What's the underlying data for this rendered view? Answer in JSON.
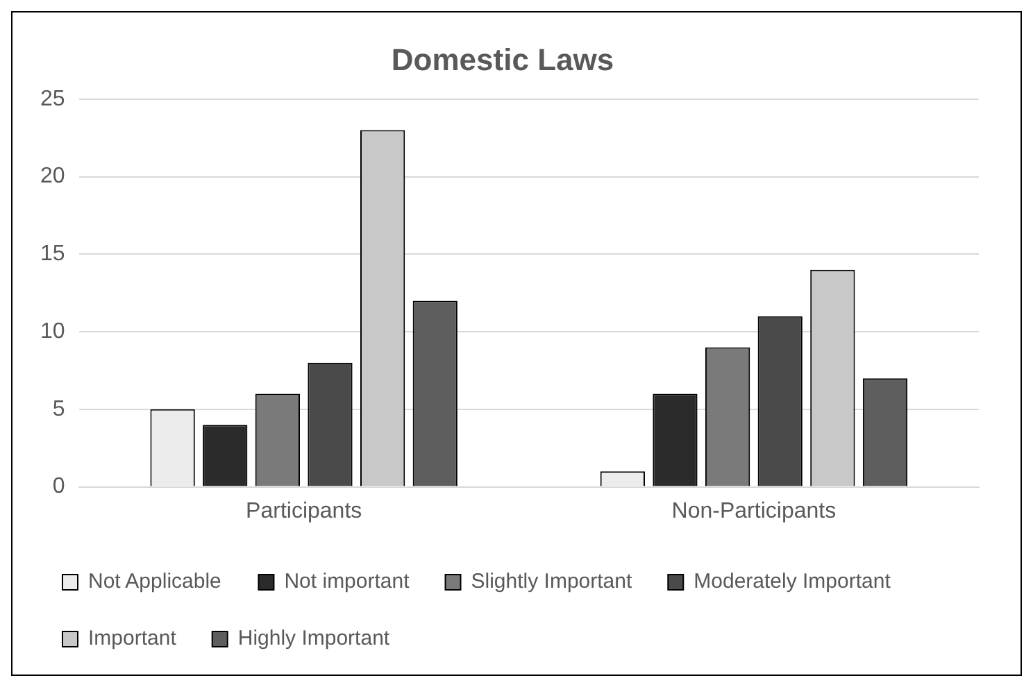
{
  "chart_data": {
    "type": "bar",
    "title": "Domestic Laws",
    "categories": [
      "Participants",
      "Non-Participants"
    ],
    "series": [
      {
        "name": "Not Applicable",
        "color": "#ececec",
        "values": [
          5,
          1
        ]
      },
      {
        "name": "Not important",
        "color": "#2b2b2b",
        "values": [
          4,
          6
        ]
      },
      {
        "name": "Slightly Important",
        "color": "#7a7a7a",
        "values": [
          6,
          9
        ]
      },
      {
        "name": "Moderately Important",
        "color": "#4a4a4a",
        "values": [
          8,
          11
        ]
      },
      {
        "name": "Important",
        "color": "#c8c8c8",
        "values": [
          23,
          14
        ]
      },
      {
        "name": "Highly Important",
        "color": "#5e5e5e",
        "values": [
          12,
          7
        ]
      }
    ],
    "ylim": [
      0,
      25
    ],
    "yticks": [
      0,
      5,
      10,
      15,
      20,
      25
    ],
    "grid": "y",
    "legend": "bottom"
  }
}
